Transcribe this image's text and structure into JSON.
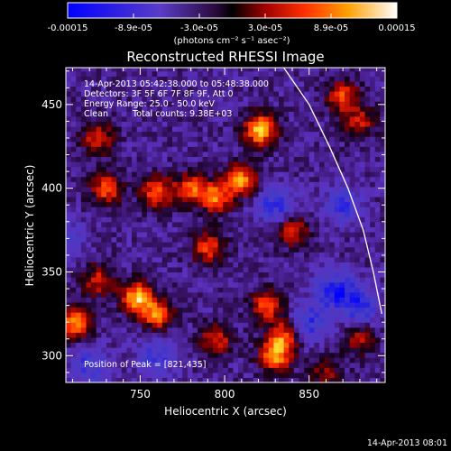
{
  "colorbar": {
    "tick_labels": [
      "-0.00015",
      "-8.9e-05",
      "-3.0e-05",
      "3.0e-05",
      "8.9e-05",
      "0.00015"
    ],
    "min": -0.00015,
    "max": 0.00015,
    "unit_label": "(photons cm⁻² s⁻¹ asec⁻²)"
  },
  "chart_data": {
    "type": "heatmap",
    "title": "Reconstructed RHESSI Image",
    "xlabel": "Heliocentric X (arcsec)",
    "ylabel": "Heliocentric Y (arcsec)",
    "xlim": [
      706,
      895
    ],
    "ylim": [
      284,
      472
    ],
    "x_ticks": [
      750,
      800,
      850
    ],
    "y_ticks": [
      300,
      350,
      400,
      450
    ],
    "grid": false,
    "hot_spots": [
      {
        "x": 821,
        "y": 435,
        "level": 1.0
      },
      {
        "x": 810,
        "y": 405,
        "level": 0.85
      },
      {
        "x": 795,
        "y": 395,
        "level": 0.8
      },
      {
        "x": 780,
        "y": 400,
        "level": 0.7
      },
      {
        "x": 760,
        "y": 398,
        "level": 0.75
      },
      {
        "x": 730,
        "y": 400,
        "level": 0.7
      },
      {
        "x": 725,
        "y": 430,
        "level": 0.6
      },
      {
        "x": 748,
        "y": 335,
        "level": 0.95
      },
      {
        "x": 760,
        "y": 325,
        "level": 0.8
      },
      {
        "x": 712,
        "y": 320,
        "level": 0.9
      },
      {
        "x": 725,
        "y": 345,
        "level": 0.55
      },
      {
        "x": 790,
        "y": 365,
        "level": 0.65
      },
      {
        "x": 795,
        "y": 310,
        "level": 0.6
      },
      {
        "x": 825,
        "y": 330,
        "level": 0.7
      },
      {
        "x": 830,
        "y": 300,
        "level": 0.85
      },
      {
        "x": 835,
        "y": 312,
        "level": 0.7
      },
      {
        "x": 840,
        "y": 375,
        "level": 0.6
      },
      {
        "x": 870,
        "y": 455,
        "level": 0.65
      },
      {
        "x": 880,
        "y": 440,
        "level": 0.5
      },
      {
        "x": 880,
        "y": 310,
        "level": 0.45
      },
      {
        "x": 860,
        "y": 290,
        "level": 0.4
      }
    ],
    "cold_spots": [
      {
        "x": 830,
        "y": 390,
        "level": 0.6
      },
      {
        "x": 865,
        "y": 340,
        "level": 0.7
      },
      {
        "x": 880,
        "y": 330,
        "level": 0.6
      },
      {
        "x": 850,
        "y": 320,
        "level": 0.55
      },
      {
        "x": 720,
        "y": 295,
        "level": 0.5
      },
      {
        "x": 705,
        "y": 370,
        "level": 0.45
      },
      {
        "x": 760,
        "y": 300,
        "level": 0.5
      },
      {
        "x": 870,
        "y": 390,
        "level": 0.5
      }
    ],
    "limb_curve": [
      {
        "x": 835,
        "y": 472
      },
      {
        "x": 850,
        "y": 450
      },
      {
        "x": 862,
        "y": 425
      },
      {
        "x": 873,
        "y": 400
      },
      {
        "x": 882,
        "y": 375
      },
      {
        "x": 888,
        "y": 350
      },
      {
        "x": 893,
        "y": 325
      }
    ],
    "peak_position": [
      821,
      435
    ]
  },
  "annotations": {
    "time_range": "14-Apr-2013 05:42:38.000 to 05:48:38.000",
    "detectors": "Detectors: 3F 5F 6F 7F 8F 9F, Att 0",
    "energy": "Energy Range: 25.0 - 50.0 keV",
    "clean_label": "Clean",
    "total_counts": "Total counts: 9.38E+03",
    "peak": "Position of Peak = [821,435]",
    "timestamp": "14-Apr-2013 08:01"
  }
}
